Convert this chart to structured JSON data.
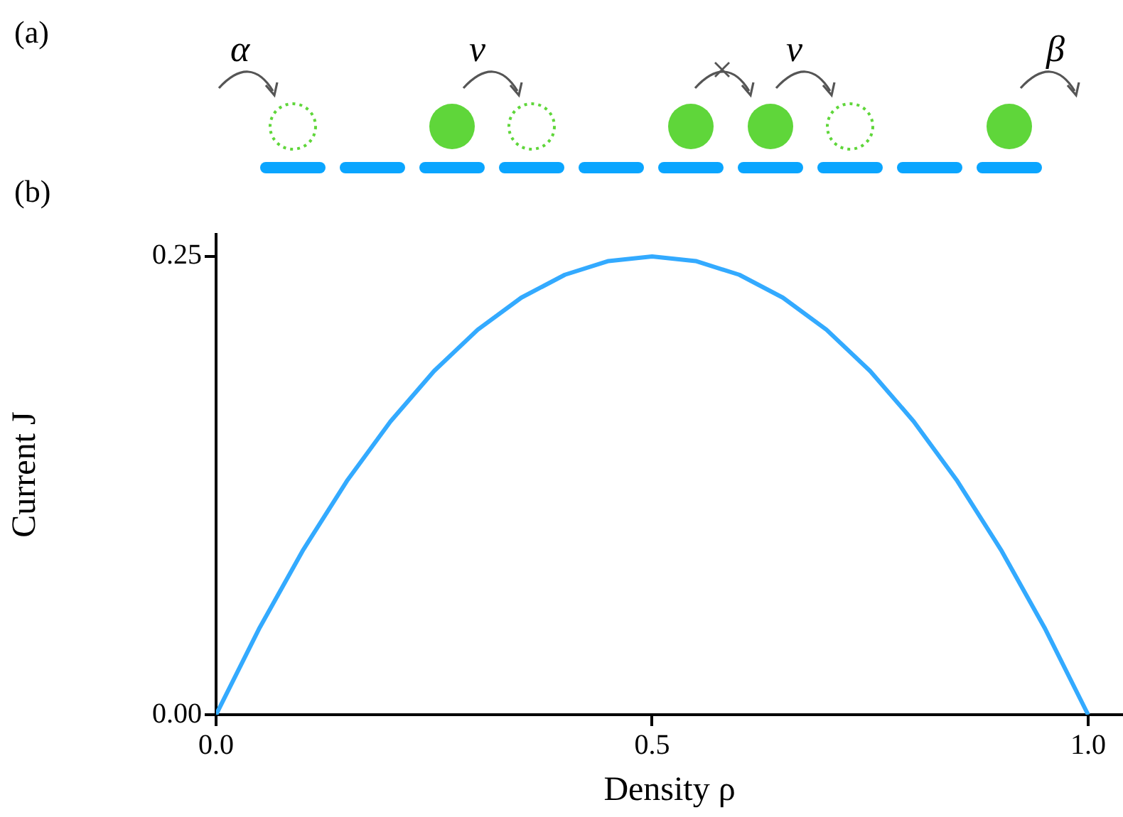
{
  "chart_data": {
    "type": "line",
    "xlabel": "Density ρ",
    "ylabel": "Current J",
    "x": [
      0,
      0.05,
      0.1,
      0.15,
      0.2,
      0.25,
      0.3,
      0.35,
      0.4,
      0.45,
      0.5,
      0.55,
      0.6,
      0.65,
      0.7,
      0.75,
      0.8,
      0.85,
      0.9,
      0.95,
      1
    ],
    "series": [
      {
        "color": "#33aaff",
        "values": [
          0,
          0.0475,
          0.09,
          0.1275,
          0.16,
          0.1875,
          0.21,
          0.2275,
          0.24,
          0.2475,
          0.25,
          0.2475,
          0.24,
          0.2275,
          0.21,
          0.1875,
          0.16,
          0.1275,
          0.09,
          0.0475,
          0
        ]
      }
    ],
    "xlim": [
      0,
      1.04
    ],
    "ylim": [
      0,
      0.262
    ],
    "xticks": [
      {
        "value": 0,
        "label": "0.0"
      },
      {
        "value": 0.5,
        "label": "0.5"
      },
      {
        "value": 1,
        "label": "1.0"
      }
    ],
    "yticks": [
      {
        "value": 0,
        "label": "0.00"
      },
      {
        "value": 0.25,
        "label": "0.25"
      }
    ],
    "marker": "none",
    "line_style": "solid",
    "grid": false,
    "legend": false,
    "annotations": [
      "(a)",
      "(b)",
      "α",
      "ν",
      "ν",
      "β"
    ]
  }
}
